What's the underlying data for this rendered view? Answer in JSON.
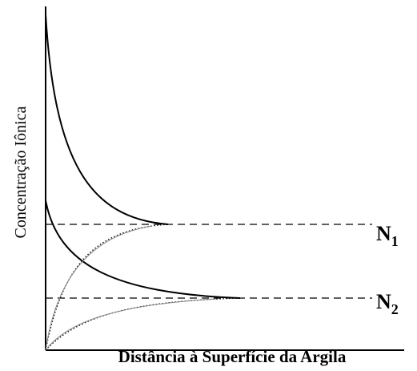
{
  "y_label": "Concentração Iônica",
  "x_label": "Distância à Superfície da Argila",
  "levels": [
    {
      "main": "N",
      "sub": "1"
    },
    {
      "main": "N",
      "sub": "2"
    }
  ]
}
